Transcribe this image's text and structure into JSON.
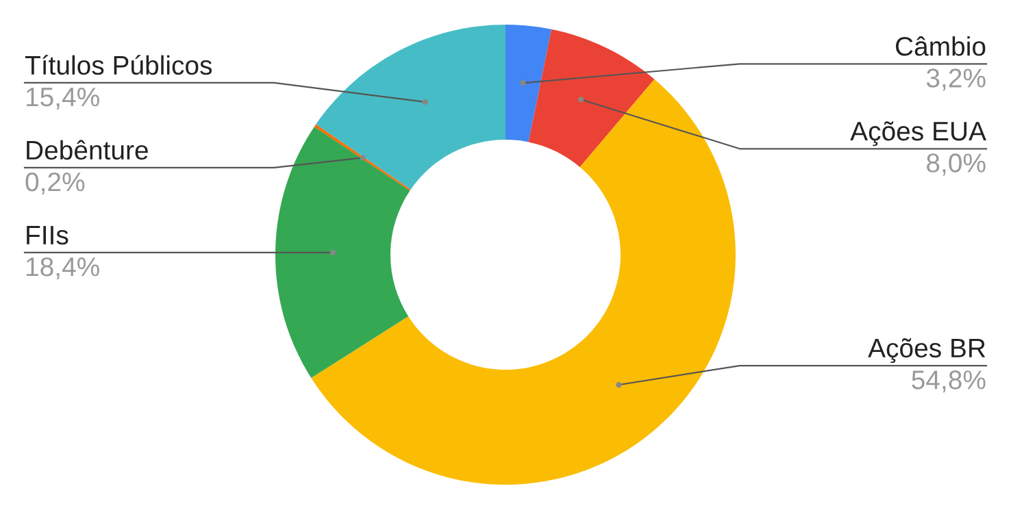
{
  "chart_data": {
    "type": "donut",
    "categories": [
      "Câmbio",
      "Ações EUA",
      "Ações BR",
      "FIIs",
      "Debênture",
      "Títulos Públicos"
    ],
    "values": [
      3.2,
      8.0,
      54.8,
      18.4,
      0.2,
      15.4
    ],
    "value_labels": [
      "3,2%",
      "8,0%",
      "54,8%",
      "18,4%",
      "0,2%",
      "15,4%"
    ],
    "colors": [
      "#4285f4",
      "#ea4335",
      "#fbbc04",
      "#34a853",
      "#ff6d01",
      "#46bdc6"
    ],
    "legend": false
  }
}
